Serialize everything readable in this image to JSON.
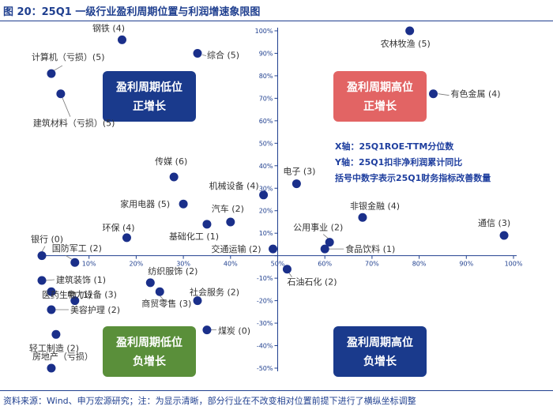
{
  "figure": {
    "title": "图 20：25Q1 一级行业盈利周期位置与利润增速象限图",
    "source": "资料来源：Wind、申万宏源研究；注：为显示清晰，部分行业在不改变相对位置前提下进行了横纵坐标调整"
  },
  "legend_notes": [
    "X轴：25Q1ROE-TTM分位数",
    "Y轴：25Q1扣非净利润累计同比",
    "括号中数字表示25Q1财务指标改善数量"
  ],
  "colors": {
    "title": "#1f3f8f",
    "dot": "#1a2f8a",
    "axis": "#1f3f8f",
    "quadrant_low_pos": "#1a3a8c",
    "quadrant_high_pos": "#e26464",
    "quadrant_low_neg": "#5a8f3a",
    "quadrant_high_neg": "#1a3a8c"
  },
  "chart_data": {
    "type": "scatter",
    "x_axis": {
      "ticks": [
        "10%",
        "20%",
        "30%",
        "40%",
        "50%",
        "60%",
        "70%",
        "80%",
        "90%",
        "100%"
      ],
      "range": [
        0,
        100
      ]
    },
    "y_axis": {
      "ticks": [
        "100%",
        "90%",
        "80%",
        "70%",
        "60%",
        "50%",
        "40%",
        "30%",
        "20%",
        "10%",
        "0%",
        "-10%",
        "-20%",
        "-30%",
        "-40%",
        "-50%"
      ],
      "range": [
        -50,
        100
      ]
    },
    "quadrants": [
      {
        "name": "low-pos",
        "line1": "盈利周期低位",
        "line2": "正增长"
      },
      {
        "name": "high-pos",
        "line1": "盈利周期高位",
        "line2": "正增长"
      },
      {
        "name": "low-neg",
        "line1": "盈利周期低位",
        "line2": "负增长"
      },
      {
        "name": "high-neg",
        "line1": "盈利周期高位",
        "line2": "负增长"
      }
    ],
    "points": [
      {
        "label": "农林牧渔 (5)",
        "x": 78,
        "y": 100
      },
      {
        "label": "钢铁 (4)",
        "x": 17,
        "y": 96
      },
      {
        "label": "综合 (5)",
        "x": 33,
        "y": 90
      },
      {
        "label": "计算机（亏损）(5)",
        "x": 2,
        "y": 81
      },
      {
        "label": "建筑材料（亏损）(5)",
        "x": 4,
        "y": 72
      },
      {
        "label": "有色金属 (4)",
        "x": 83,
        "y": 72
      },
      {
        "label": "传媒 (6)",
        "x": 28,
        "y": 35
      },
      {
        "label": "电子 (3)",
        "x": 54,
        "y": 32
      },
      {
        "label": "机械设备 (4)",
        "x": 47,
        "y": 27
      },
      {
        "label": "家用电器 (5)",
        "x": 30,
        "y": 23
      },
      {
        "label": "非银金融 (4)",
        "x": 68,
        "y": 17
      },
      {
        "label": "汽车 (2)",
        "x": 40,
        "y": 15
      },
      {
        "label": "基础化工 (1)",
        "x": 35,
        "y": 14
      },
      {
        "label": "环保 (4)",
        "x": 18,
        "y": 8
      },
      {
        "label": "通信 (3)",
        "x": 98,
        "y": 9
      },
      {
        "label": "公用事业 (2)",
        "x": 61,
        "y": 6
      },
      {
        "label": "交通运输 (2)",
        "x": 49,
        "y": 3
      },
      {
        "label": "食品饮料 (1)",
        "x": 60,
        "y": 3
      },
      {
        "label": "银行 (0)",
        "x": 0,
        "y": 0
      },
      {
        "label": "国防军工 (2)",
        "x": 7,
        "y": -3
      },
      {
        "label": "石油石化 (2)",
        "x": 52,
        "y": -6
      },
      {
        "label": "纺织服饰 (2)",
        "x": 23,
        "y": -12
      },
      {
        "label": "建筑装饰 (1)",
        "x": 0,
        "y": -11
      },
      {
        "label": "医药生物 (1)",
        "x": 2,
        "y": -16
      },
      {
        "label": "商贸零售 (3)",
        "x": 25,
        "y": -16
      },
      {
        "label": "电力设备 (3)",
        "x": 7,
        "y": -20
      },
      {
        "label": "社会服务 (2)",
        "x": 33,
        "y": -20
      },
      {
        "label": "美容护理 (2)",
        "x": 2,
        "y": -24
      },
      {
        "label": "煤炭 (0)",
        "x": 35,
        "y": -33
      },
      {
        "label": "轻工制造 (2)",
        "x": 3,
        "y": -35
      },
      {
        "label": "房地产（亏损）",
        "x": 2,
        "y": -50
      }
    ]
  }
}
